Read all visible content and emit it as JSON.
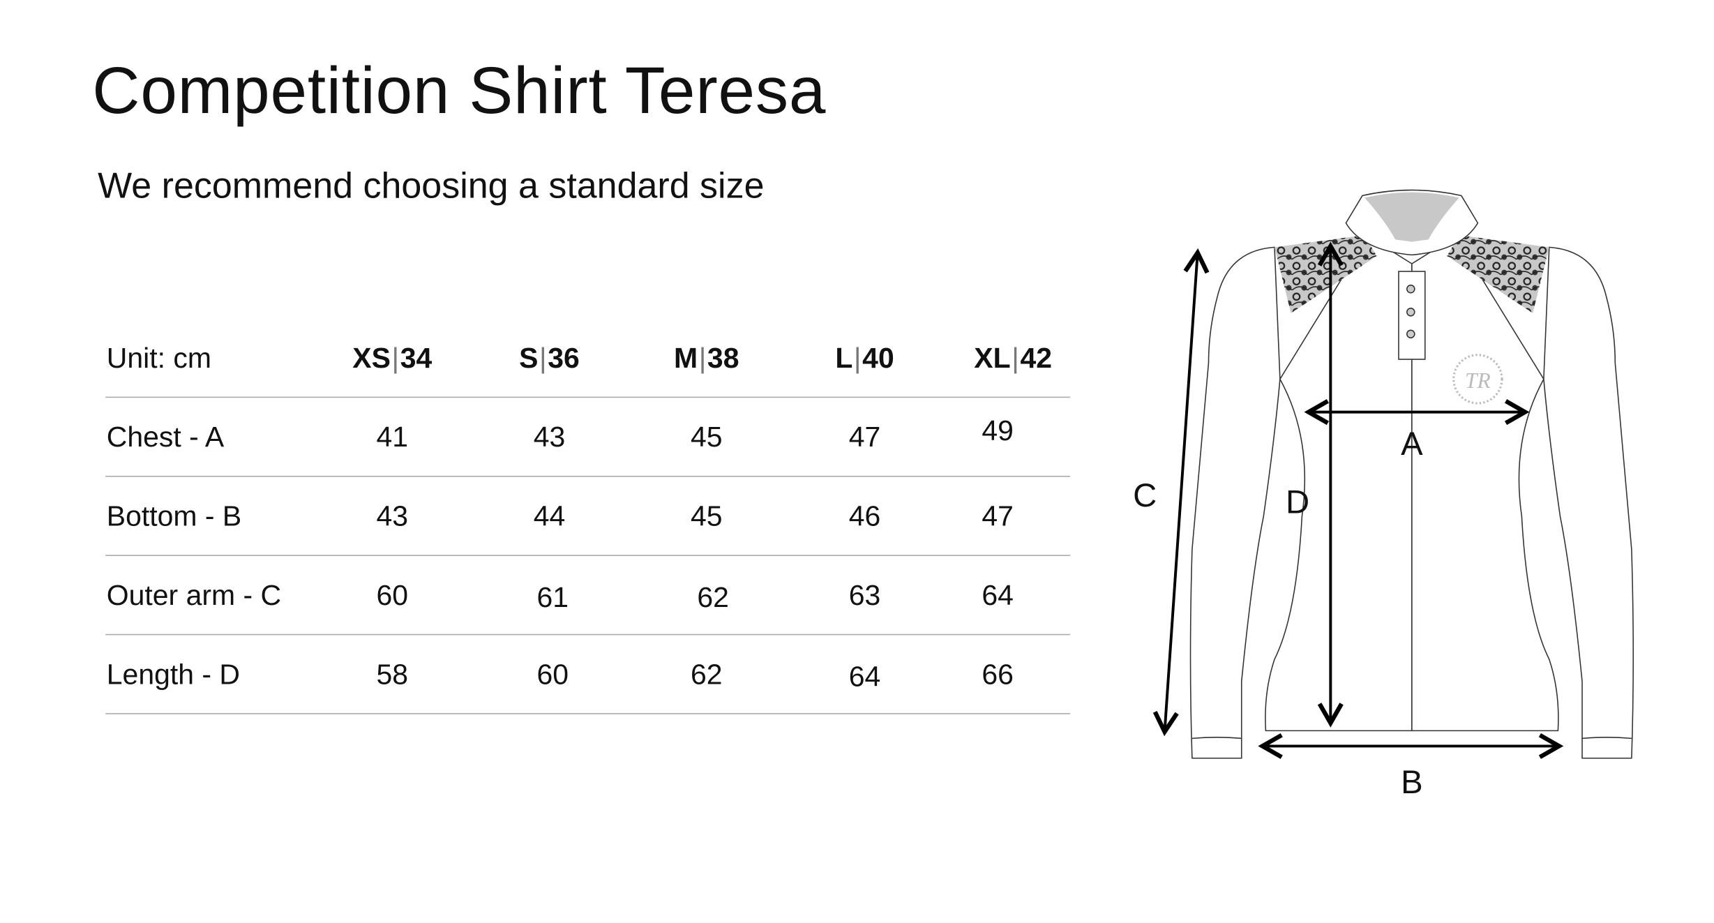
{
  "title": "Competition Shirt Teresa",
  "subtitle": "We recommend choosing a standard size",
  "table": {
    "unit_label": "Unit: cm",
    "headers": [
      {
        "letter": "XS",
        "num": "34"
      },
      {
        "letter": "S",
        "num": "36"
      },
      {
        "letter": "M",
        "num": "38"
      },
      {
        "letter": "L",
        "num": "40"
      },
      {
        "letter": "XL",
        "num": "42"
      }
    ],
    "separator": "|",
    "rows": [
      {
        "label": "Chest - A",
        "values": [
          "41",
          "43",
          "45",
          "47",
          "49"
        ]
      },
      {
        "label": "Bottom - B",
        "values": [
          "43",
          "44",
          "45",
          "46",
          "47"
        ]
      },
      {
        "label": "Outer arm - C",
        "values": [
          "60",
          "61",
          "62",
          "63",
          "64"
        ]
      },
      {
        "label": "Length - D",
        "values": [
          "58",
          "60",
          "62",
          "64",
          "66"
        ]
      }
    ]
  },
  "diagram": {
    "labels": {
      "a": "A",
      "b": "B",
      "c": "C",
      "d": "D"
    },
    "logo_text": "TR"
  }
}
